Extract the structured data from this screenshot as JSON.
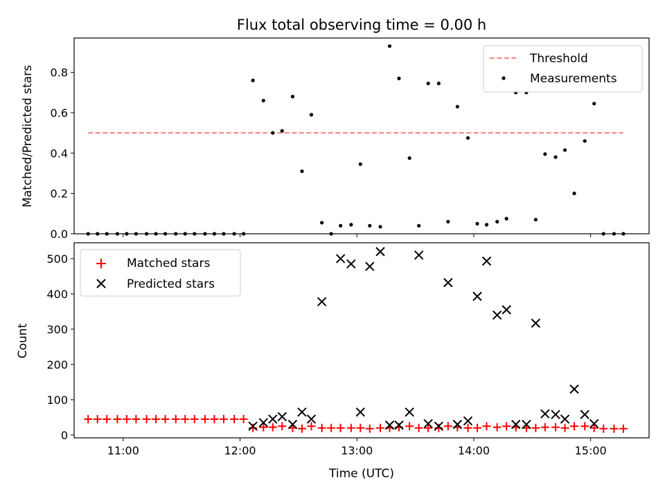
{
  "chart_data": [
    {
      "type": "scatter",
      "title": "Flux total observing time = 0.00 h",
      "ylabel": "Matched/Predicted stars",
      "xlabel": "",
      "x_unit": "UTC hours",
      "xlim": [
        10.58,
        15.5
      ],
      "ylim": [
        0,
        0.97
      ],
      "yticks": [
        0.0,
        0.2,
        0.4,
        0.6,
        0.8
      ],
      "ytick_labels": [
        "0.0",
        "0.2",
        "0.4",
        "0.6",
        "0.8"
      ],
      "legend_position": "upper right",
      "threshold": {
        "name": "Threshold",
        "y": 0.5,
        "x": [
          10.7,
          15.28
        ],
        "color": "#ff8080",
        "style": "dashed"
      },
      "series": [
        {
          "name": "Measurements",
          "color": "#000000",
          "marker": "dot",
          "x": [
            10.7,
            10.78,
            10.86,
            10.95,
            11.03,
            11.11,
            11.2,
            11.28,
            11.36,
            11.45,
            11.53,
            11.61,
            11.7,
            11.78,
            11.86,
            11.95,
            12.03,
            12.11,
            12.2,
            12.28,
            12.36,
            12.45,
            12.53,
            12.61,
            12.7,
            12.78,
            12.86,
            12.95,
            13.03,
            13.11,
            13.2,
            13.28,
            13.36,
            13.45,
            13.53,
            13.61,
            13.7,
            13.78,
            13.86,
            13.95,
            14.03,
            14.11,
            14.2,
            14.28,
            14.36,
            14.45,
            14.53,
            14.61,
            14.7,
            14.78,
            14.86,
            14.95,
            15.03,
            15.11,
            15.2,
            15.28
          ],
          "y": [
            0,
            0,
            0,
            0,
            0,
            0,
            0,
            0,
            0,
            0,
            0,
            0,
            0,
            0,
            0,
            0,
            0,
            0.76,
            0.66,
            0.5,
            0.51,
            0.68,
            0.31,
            0.59,
            0.055,
            0.0,
            0.04,
            0.045,
            0.345,
            0.04,
            0.035,
            0.93,
            0.77,
            0.375,
            0.04,
            0.745,
            0.745,
            0.06,
            0.63,
            0.475,
            0.05,
            0.045,
            0.06,
            0.075,
            0.7,
            0.7,
            0.07,
            0.395,
            0.38,
            0.415,
            0.2,
            0.46,
            0.645,
            0,
            0,
            0
          ]
        }
      ]
    },
    {
      "type": "scatter",
      "title": "",
      "ylabel": "Count",
      "xlabel": "Time (UTC)",
      "x_unit": "UTC hours",
      "xlim": [
        10.58,
        15.5
      ],
      "ylim": [
        -8,
        545
      ],
      "yticks": [
        0,
        100,
        200,
        300,
        400,
        500
      ],
      "ytick_labels": [
        "0",
        "100",
        "200",
        "300",
        "400",
        "500"
      ],
      "xticks": [
        11,
        12,
        13,
        14,
        15
      ],
      "xtick_labels": [
        "11:00",
        "12:00",
        "13:00",
        "14:00",
        "15:00"
      ],
      "legend_position": "upper left",
      "series": [
        {
          "name": "Matched stars",
          "color": "#ff0000",
          "marker": "plus",
          "x": [
            10.7,
            10.78,
            10.86,
            10.95,
            11.03,
            11.11,
            11.2,
            11.28,
            11.36,
            11.45,
            11.53,
            11.61,
            11.7,
            11.78,
            11.86,
            11.95,
            12.03,
            12.11,
            12.2,
            12.28,
            12.36,
            12.45,
            12.53,
            12.61,
            12.7,
            12.78,
            12.86,
            12.95,
            13.03,
            13.11,
            13.2,
            13.28,
            13.36,
            13.45,
            13.53,
            13.61,
            13.7,
            13.78,
            13.86,
            13.95,
            14.03,
            14.11,
            14.2,
            14.28,
            14.36,
            14.45,
            14.53,
            14.61,
            14.7,
            14.78,
            14.86,
            14.95,
            15.03,
            15.11,
            15.2,
            15.28
          ],
          "y": [
            45,
            45,
            45,
            45,
            45,
            45,
            45,
            45,
            45,
            45,
            45,
            45,
            45,
            45,
            45,
            45,
            45,
            20,
            22,
            22,
            25,
            20,
            18,
            25,
            20,
            20,
            20,
            20,
            20,
            18,
            20,
            20,
            22,
            25,
            20,
            20,
            20,
            25,
            22,
            20,
            20,
            25,
            22,
            25,
            22,
            20,
            20,
            22,
            22,
            20,
            25,
            25,
            20,
            18,
            18,
            18
          ]
        },
        {
          "name": "Predicted stars",
          "color": "#000000",
          "marker": "x",
          "x": [
            12.11,
            12.2,
            12.28,
            12.36,
            12.45,
            12.53,
            12.61,
            12.7,
            12.86,
            12.95,
            13.03,
            13.11,
            13.2,
            13.28,
            13.36,
            13.45,
            13.53,
            13.61,
            13.7,
            13.78,
            13.86,
            13.95,
            14.03,
            14.11,
            14.2,
            14.28,
            14.36,
            14.45,
            14.53,
            14.61,
            14.7,
            14.78,
            14.86,
            14.95,
            15.03
          ],
          "y": [
            25,
            35,
            45,
            52,
            30,
            65,
            45,
            378,
            500,
            485,
            65,
            478,
            520,
            28,
            28,
            65,
            510,
            32,
            25,
            432,
            30,
            40,
            393,
            493,
            340,
            355,
            30,
            30,
            317,
            60,
            58,
            45,
            130,
            58,
            32
          ]
        }
      ]
    }
  ]
}
